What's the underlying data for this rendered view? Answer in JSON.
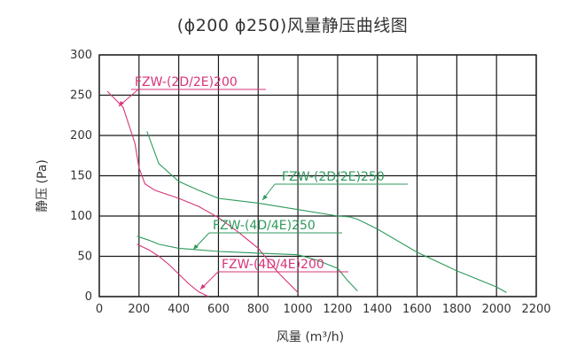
{
  "chart_data": {
    "type": "line",
    "title": "(ϕ200 ϕ250)风量静压曲线图",
    "xlabel": "风量 (m³/h)",
    "ylabel": "静压 (Pa)",
    "xlim": [
      0,
      2200
    ],
    "ylim": [
      0,
      300
    ],
    "xticks": [
      0,
      200,
      400,
      600,
      800,
      1000,
      1200,
      1400,
      1600,
      1800,
      2000,
      2200
    ],
    "yticks": [
      0,
      50,
      100,
      150,
      200,
      250,
      300
    ],
    "grid": true,
    "legend": "inline labels with leader lines",
    "series": [
      {
        "name": "FZW-(2D/2E)200",
        "color": "#d6337a",
        "x": [
          40,
          120,
          180,
          200,
          230,
          280,
          400,
          500,
          600,
          700,
          800,
          900,
          1000
        ],
        "y": [
          255,
          235,
          190,
          160,
          140,
          132,
          122,
          112,
          98,
          80,
          60,
          30,
          5
        ]
      },
      {
        "name": "FZW-(2D/2E)250",
        "color": "#2e9a5c",
        "x": [
          240,
          300,
          400,
          500,
          600,
          800,
          1000,
          1200,
          1260,
          1300,
          1400,
          1600,
          1800,
          2000,
          2050
        ],
        "y": [
          205,
          165,
          143,
          132,
          122,
          116,
          108,
          100,
          99,
          96,
          84,
          55,
          32,
          12,
          5
        ]
      },
      {
        "name": "FZW-(4D/4E)250",
        "color": "#2e9a5c",
        "x": [
          190,
          250,
          300,
          400,
          500,
          600,
          700,
          800,
          1000,
          1100,
          1200,
          1250,
          1300
        ],
        "y": [
          75,
          70,
          65,
          60,
          58,
          56,
          55,
          54,
          52,
          45,
          35,
          20,
          7
        ]
      },
      {
        "name": "FZW-(4D/4E)200",
        "color": "#d6337a",
        "x": [
          190,
          250,
          300,
          350,
          400,
          450,
          500,
          550
        ],
        "y": [
          65,
          58,
          50,
          40,
          28,
          16,
          6,
          0
        ]
      }
    ]
  }
}
